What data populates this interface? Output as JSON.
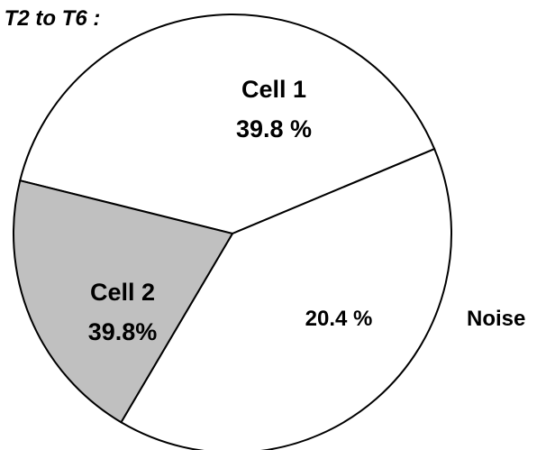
{
  "chart_data": {
    "type": "pie",
    "title": "t T2 to T6 :",
    "slices": [
      {
        "name": "Cell 1",
        "value_label": "39.8 %",
        "value": 39.8,
        "color": "#ffffff",
        "outside_label": ""
      },
      {
        "name": "Cell 2",
        "value_label": "39.8%",
        "value": 39.8,
        "color": "#ffffff",
        "outside_label": ""
      },
      {
        "name": "",
        "value_label": "20.4 %",
        "value": 20.4,
        "color": "#c0c0c0",
        "outside_label": "Noise"
      }
    ],
    "edge_color": "#000000",
    "legend": "none"
  }
}
